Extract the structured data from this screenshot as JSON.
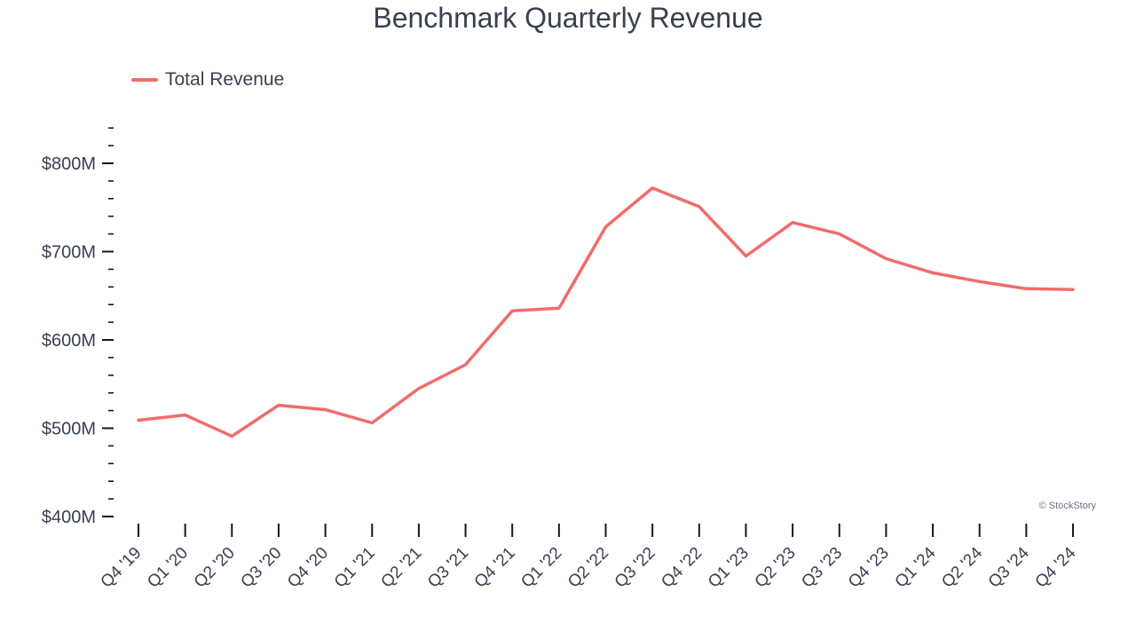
{
  "chart_data": {
    "type": "line",
    "title": "Benchmark Quarterly Revenue",
    "categories": [
      "Q4 '19",
      "Q1 '20",
      "Q2 '20",
      "Q3 '20",
      "Q4 '20",
      "Q1 '21",
      "Q2 '21",
      "Q3 '21",
      "Q4 '21",
      "Q1 '22",
      "Q2 '22",
      "Q3 '22",
      "Q4 '22",
      "Q1 '23",
      "Q2 '23",
      "Q3 '23",
      "Q4 '23",
      "Q1 '24",
      "Q2 '24",
      "Q3 '24",
      "Q4 '24"
    ],
    "series": [
      {
        "name": "Total Revenue",
        "color": "#f26b6b",
        "values": [
          509,
          515,
          491,
          526,
          521,
          506,
          545,
          572,
          633,
          636,
          728,
          772,
          751,
          695,
          733,
          720,
          692,
          676,
          666,
          658,
          657
        ]
      }
    ],
    "y_ticks": [
      {
        "value": 400,
        "label": "$400M"
      },
      {
        "value": 500,
        "label": "$500M"
      },
      {
        "value": 600,
        "label": "$600M"
      },
      {
        "value": 700,
        "label": "$700M"
      },
      {
        "value": 800,
        "label": "$800M"
      }
    ],
    "ylim": [
      400,
      840
    ],
    "legend_position": "top-left",
    "grid": false
  },
  "watermark": "© StockStory"
}
